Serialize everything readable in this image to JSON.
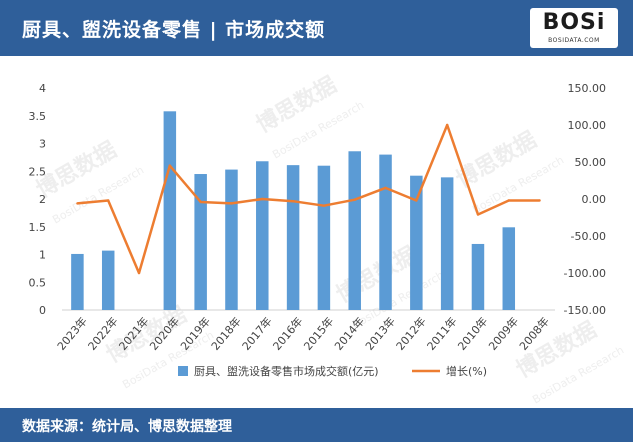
{
  "header": {
    "title": "厨具、盥洗设备零售 | 市场成交额",
    "logo_text": "BOSi",
    "logo_subtext": "BOSIDATA.COM",
    "background_color": "#2f5f9a"
  },
  "footer": {
    "source_text": "数据来源：统计局、博思数据整理"
  },
  "watermark": {
    "text_cn": "博思数据",
    "text_en": "BosiData Research"
  },
  "chart_data": {
    "type": "bar",
    "categories": [
      "2023年",
      "2022年",
      "2021年",
      "2020年",
      "2019年",
      "2018年",
      "2017年",
      "2016年",
      "2015年",
      "2014年",
      "2013年",
      "2012年",
      "2011年",
      "2010年",
      "2009年",
      "2008年"
    ],
    "series": [
      {
        "name": "厨具、盥洗设备零售市场成交额(亿元)",
        "type": "bar",
        "axis": "left",
        "color": "#5b9bd5",
        "values": [
          1.01,
          1.07,
          null,
          3.58,
          2.45,
          2.53,
          2.68,
          2.61,
          2.6,
          2.86,
          2.8,
          2.42,
          2.39,
          1.19,
          1.49,
          null
        ]
      },
      {
        "name": "增长(%)",
        "type": "line",
        "axis": "right",
        "color": "#ed7d31",
        "values": [
          -6,
          -2,
          -100,
          45,
          -4,
          -6,
          0,
          -3,
          -9,
          -1,
          15,
          -2,
          100,
          -21,
          -2,
          -2
        ]
      }
    ],
    "y_left": {
      "min": 0,
      "max": 4,
      "step": 0.5,
      "ticks": [
        "0",
        "0.5",
        "1",
        "1.5",
        "2",
        "2.5",
        "3",
        "3.5",
        "4"
      ]
    },
    "y_right": {
      "min": -150,
      "max": 150,
      "step": 50,
      "ticks": [
        "-150.00",
        "-100.00",
        "-50.00",
        "0.00",
        "50.00",
        "100.00",
        "150.00"
      ]
    },
    "grid": false,
    "legend_position": "bottom"
  }
}
